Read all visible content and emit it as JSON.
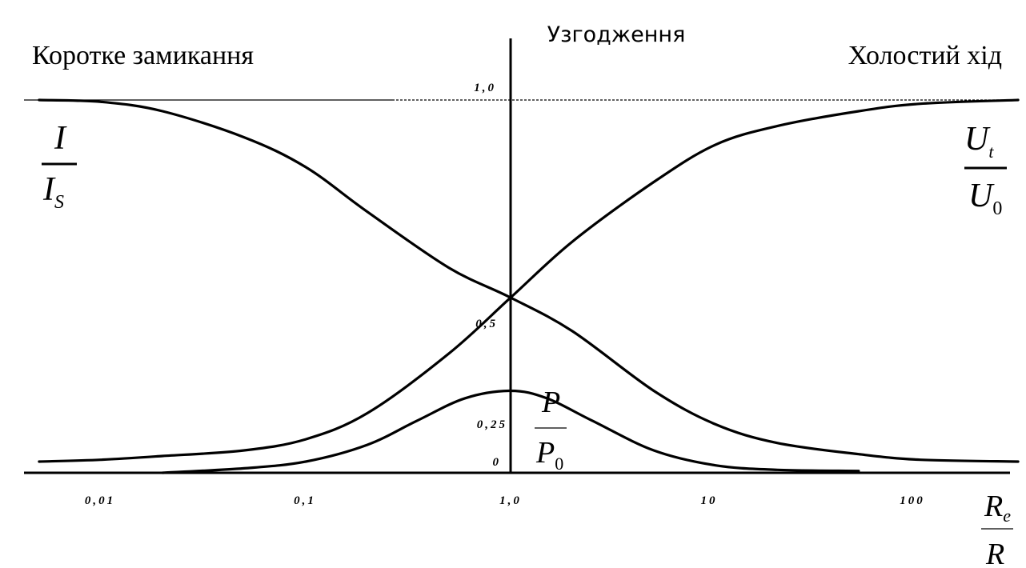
{
  "chart_data": {
    "type": "line",
    "x_scale": "log",
    "xlabel": {
      "numerator": "R",
      "numerator_sub": "e",
      "denominator": "R"
    },
    "xlim": [
      0.005,
      300
    ],
    "ylim": [
      0,
      1.05
    ],
    "x_ticks": [
      {
        "value": 0.01,
        "label": "0,01"
      },
      {
        "value": 0.1,
        "label": "0,1"
      },
      {
        "value": 1,
        "label": "1,0"
      },
      {
        "value": 10,
        "label": "10"
      },
      {
        "value": 100,
        "label": "100"
      }
    ],
    "y_ticks": [
      {
        "value": 1.0,
        "label": "1,0"
      },
      {
        "value": 0.5,
        "label": "0,5"
      },
      {
        "value": 0.25,
        "label": "0,25"
      },
      {
        "value": 0,
        "label": "0"
      }
    ],
    "reference_line_y": 1.0,
    "regions": {
      "left": "Коротке замикання",
      "center": "Узгодження",
      "right": "Холостий хід"
    },
    "series": [
      {
        "name": "I/I_S",
        "label": {
          "numerator": "I",
          "denominator": "I",
          "denominator_sub": "S"
        },
        "x": [
          0.005,
          0.01,
          0.02,
          0.05,
          0.1,
          0.2,
          0.5,
          1.0,
          2,
          5,
          10,
          20,
          50,
          100,
          300
        ],
        "y": [
          1.0,
          0.995,
          0.97,
          0.9,
          0.82,
          0.7,
          0.55,
          0.47,
          0.38,
          0.22,
          0.13,
          0.08,
          0.05,
          0.035,
          0.03
        ]
      },
      {
        "name": "U_t/U_0",
        "label": {
          "numerator": "U",
          "numerator_sub": "t",
          "denominator": "U",
          "denominator_sub": "0"
        },
        "x": [
          0.005,
          0.01,
          0.02,
          0.05,
          0.1,
          0.2,
          0.5,
          1.0,
          2,
          5,
          10,
          20,
          50,
          100,
          300
        ],
        "y": [
          0.03,
          0.035,
          0.045,
          0.06,
          0.09,
          0.16,
          0.32,
          0.47,
          0.62,
          0.78,
          0.88,
          0.93,
          0.97,
          0.99,
          1.0
        ]
      },
      {
        "name": "P/P_0",
        "label": {
          "numerator": "P",
          "denominator": "P",
          "denominator_sub": "0"
        },
        "x": [
          0.02,
          0.05,
          0.1,
          0.2,
          0.35,
          0.6,
          1.0,
          1.5,
          2.5,
          5,
          10,
          20,
          50
        ],
        "y": [
          0.0,
          0.012,
          0.03,
          0.075,
          0.14,
          0.2,
          0.22,
          0.2,
          0.14,
          0.06,
          0.02,
          0.008,
          0.005
        ]
      }
    ]
  }
}
